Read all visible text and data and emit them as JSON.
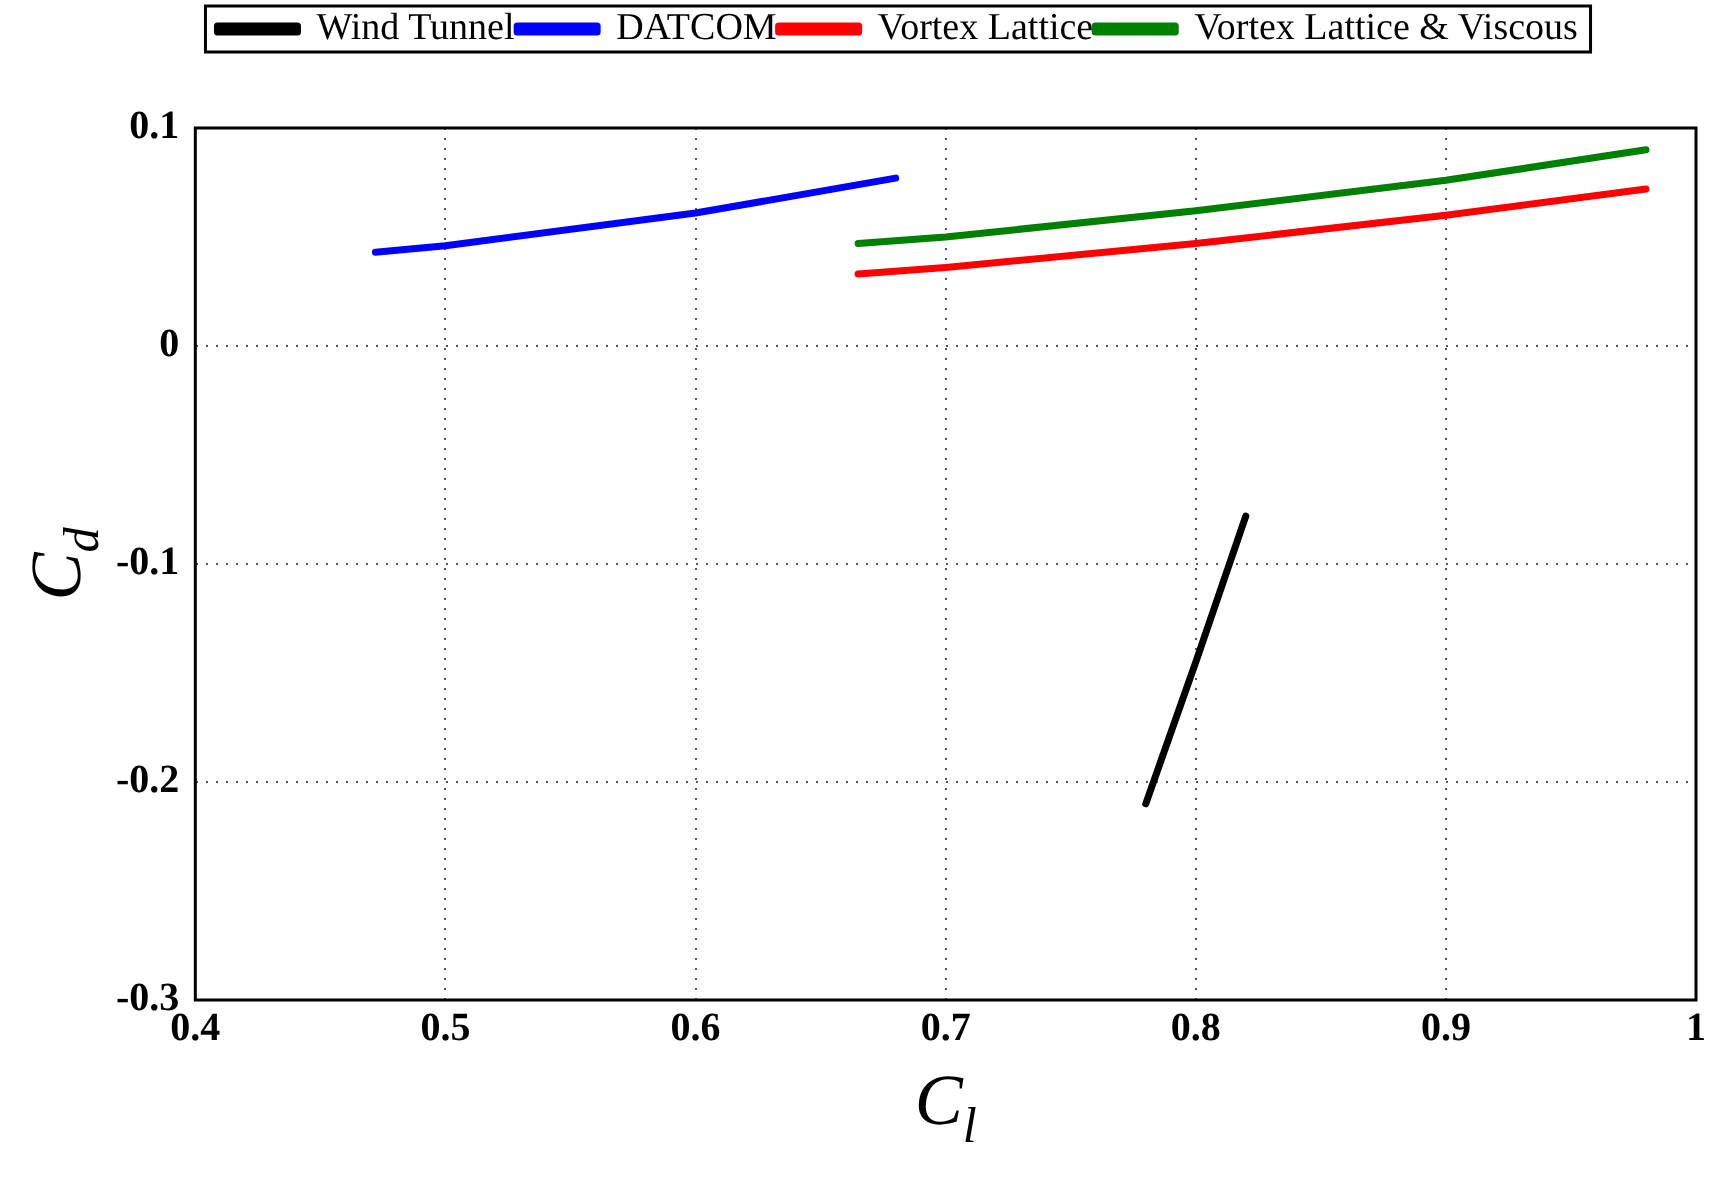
{
  "chart_data": {
    "type": "line",
    "xlabel": "C$_{l}$",
    "ylabel": "C$_{d}$",
    "xlim": [
      0.4,
      1
    ],
    "ylim": [
      -0.3,
      0.1
    ],
    "xticks": [
      0.4,
      0.5,
      0.6,
      0.7,
      0.8,
      0.9,
      1
    ],
    "yticks": [
      -0.3,
      -0.2,
      -0.1,
      0,
      0.1
    ],
    "grid": true,
    "legend": "top",
    "marker": "none",
    "line_style": "solid",
    "series": [
      {
        "name": "Wind Tunnel",
        "color": "#000000",
        "x": [
          0.78,
          0.8,
          0.82
        ],
        "values": [
          -0.21,
          -0.145,
          -0.078
        ]
      },
      {
        "name": "DATCOM",
        "color": "#0000ff",
        "x": [
          0.472,
          0.5,
          0.6,
          0.68
        ],
        "values": [
          0.043,
          0.046,
          0.061,
          0.077
        ]
      },
      {
        "name": "Vortex Lattice",
        "color": "#ff0000",
        "x": [
          0.665,
          0.7,
          0.8,
          0.9,
          0.98
        ],
        "values": [
          0.033,
          0.036,
          0.047,
          0.06,
          0.072
        ]
      },
      {
        "name": "Vortex Lattice & Viscous",
        "color": "#008000",
        "x": [
          0.665,
          0.7,
          0.8,
          0.9,
          0.98
        ],
        "values": [
          0.047,
          0.05,
          0.062,
          0.076,
          0.09
        ]
      }
    ]
  }
}
